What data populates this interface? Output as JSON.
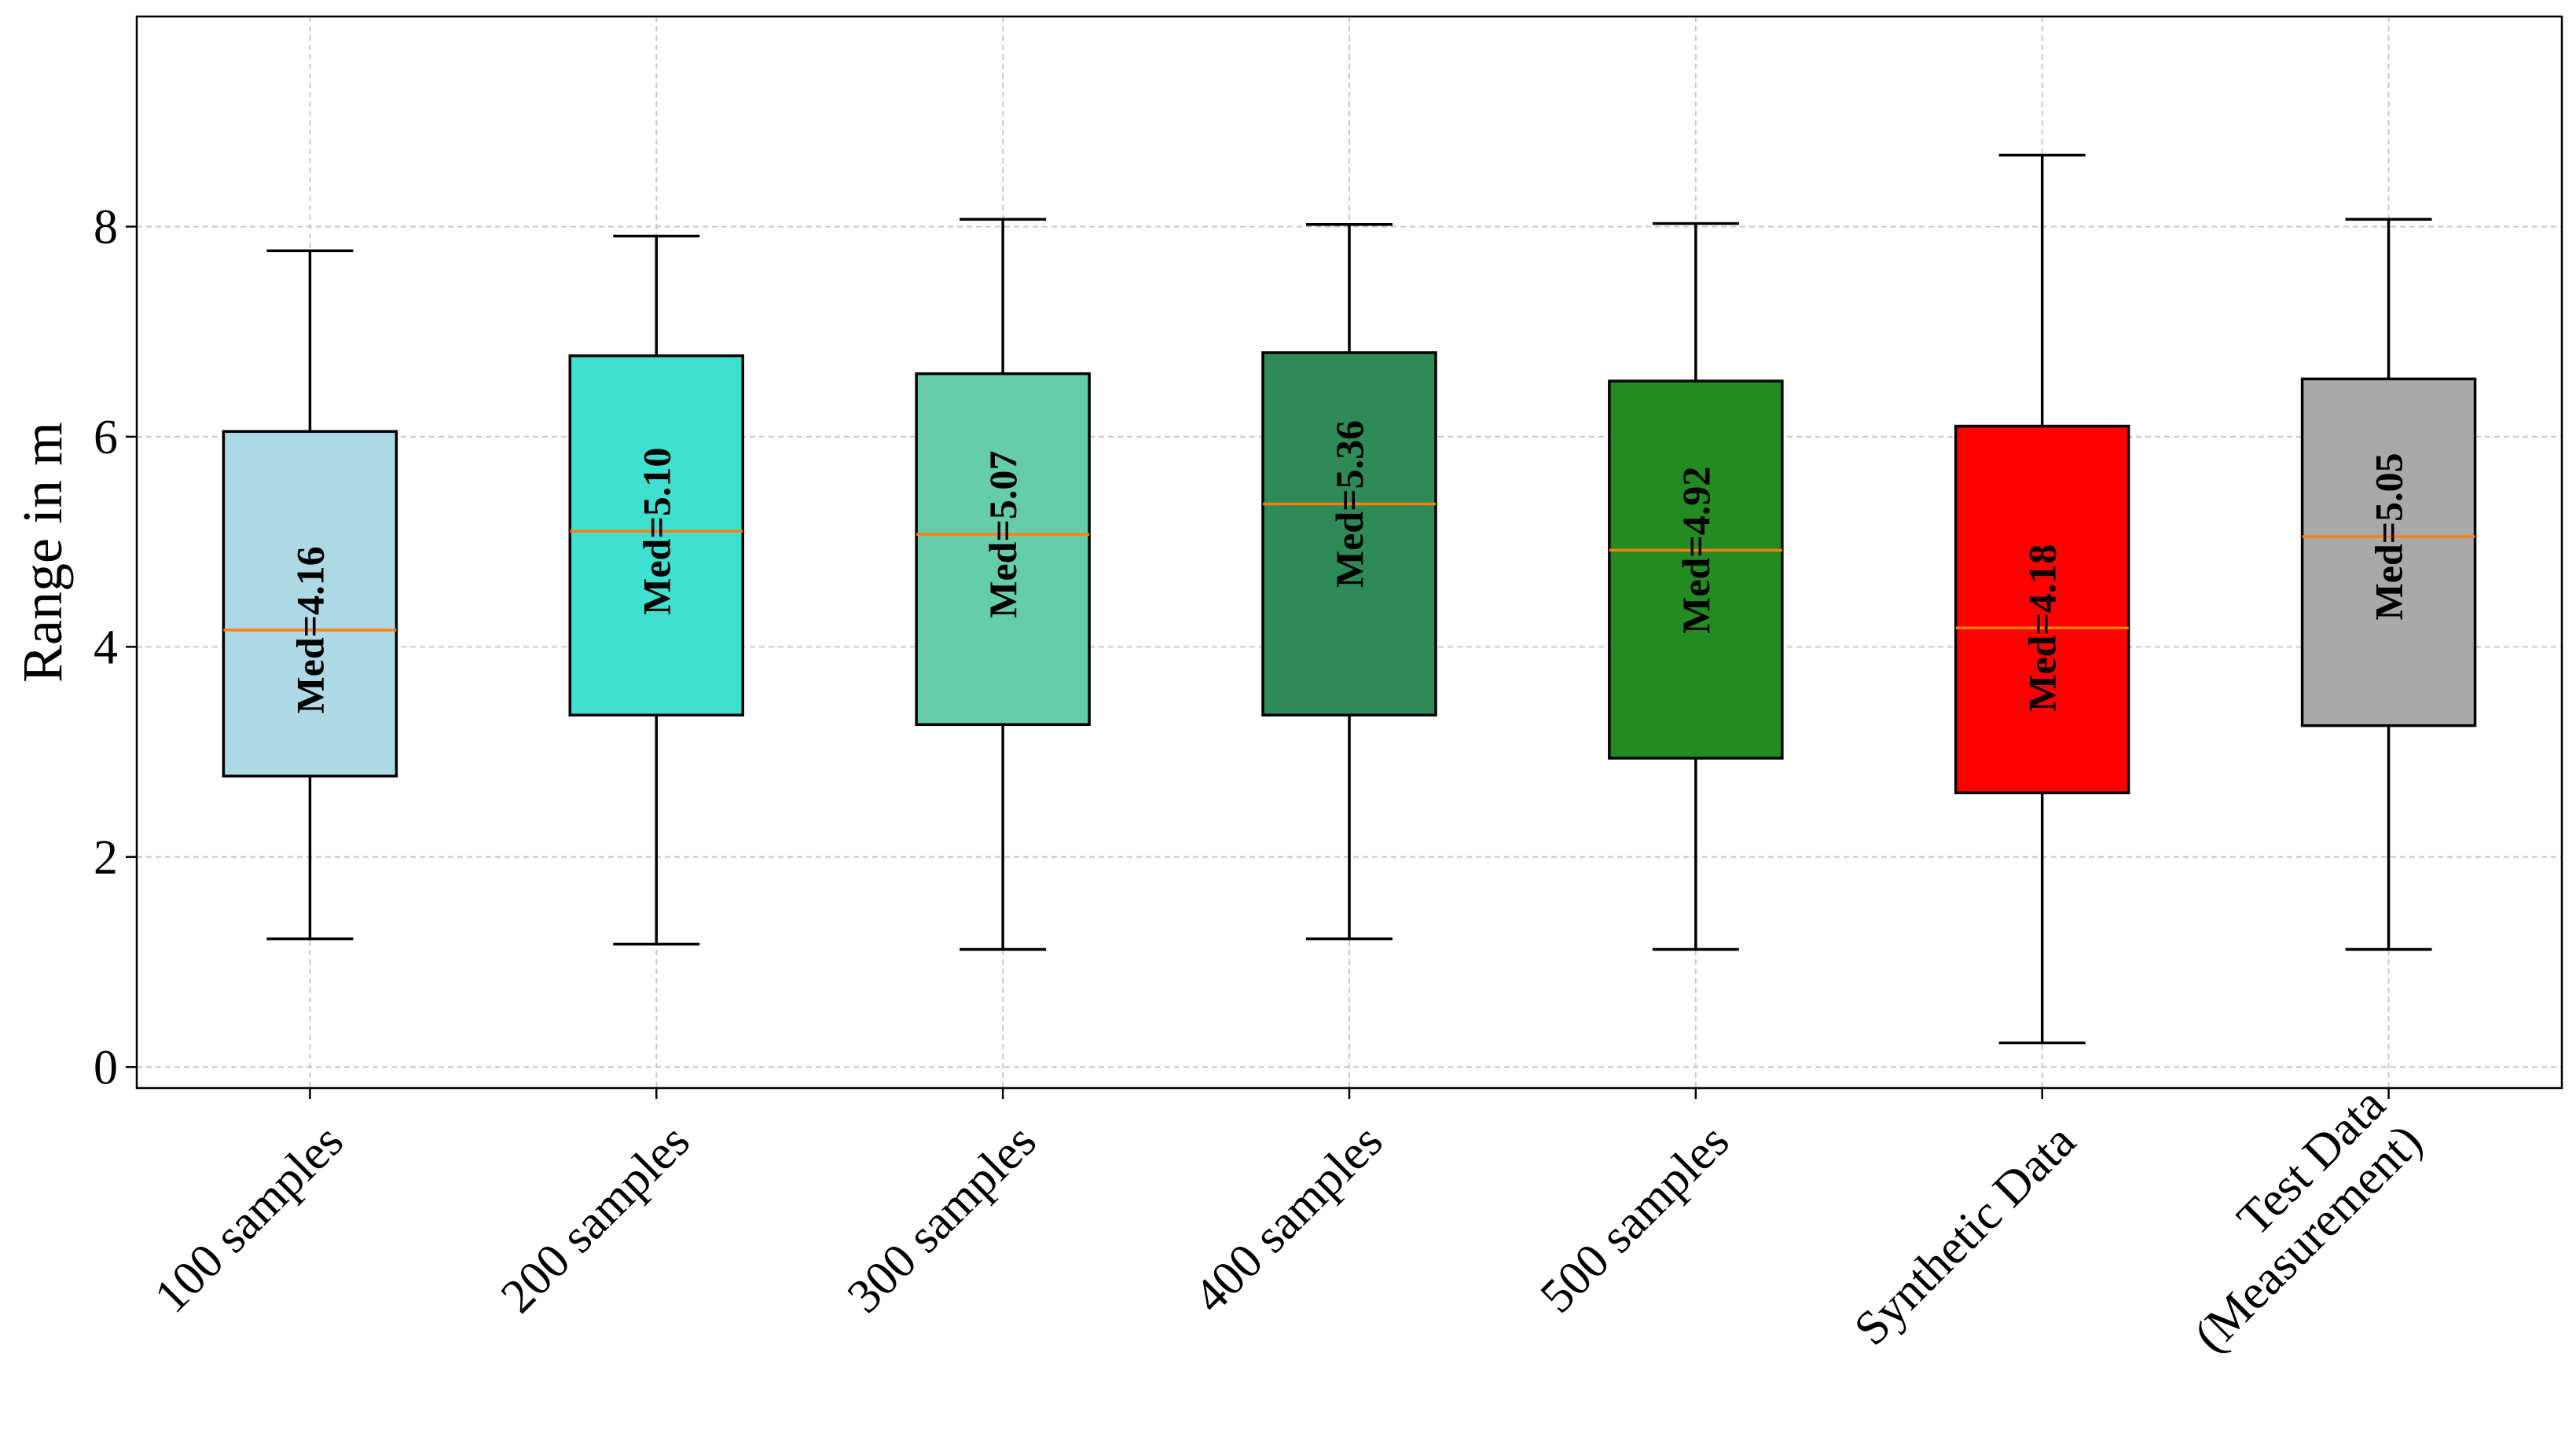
{
  "chart_data": {
    "type": "box",
    "title": "",
    "xlabel": "",
    "ylabel": "Range in m",
    "ylim": [
      -0.2,
      10
    ],
    "yticks": [
      0,
      2,
      4,
      6,
      8
    ],
    "grid": true,
    "median_color": "#ff7f0e",
    "boxes": [
      {
        "label_lines": [
          "100 samples"
        ],
        "whisker_low": 1.22,
        "q1": 2.77,
        "median": 4.16,
        "q3": 6.05,
        "whisker_high": 7.77,
        "color": "#add8e6",
        "median_label": "Med=4.16"
      },
      {
        "label_lines": [
          "200 samples"
        ],
        "whisker_low": 1.17,
        "q1": 3.35,
        "median": 5.1,
        "q3": 6.77,
        "whisker_high": 7.91,
        "color": "#40e0d0",
        "median_label": "Med=5.10"
      },
      {
        "label_lines": [
          "300 samples"
        ],
        "whisker_low": 1.12,
        "q1": 3.26,
        "median": 5.07,
        "q3": 6.6,
        "whisker_high": 8.07,
        "color": "#66cdaa",
        "median_label": "Med=5.07"
      },
      {
        "label_lines": [
          "400 samples"
        ],
        "whisker_low": 1.22,
        "q1": 3.35,
        "median": 5.36,
        "q3": 6.8,
        "whisker_high": 8.02,
        "color": "#2e8b57",
        "median_label": "Med=5.36"
      },
      {
        "label_lines": [
          "500 samples"
        ],
        "whisker_low": 1.12,
        "q1": 2.94,
        "median": 4.92,
        "q3": 6.53,
        "whisker_high": 8.03,
        "color": "#228b22",
        "median_label": "Med=4.92"
      },
      {
        "label_lines": [
          "Synthetic Data"
        ],
        "whisker_low": 0.23,
        "q1": 2.61,
        "median": 4.18,
        "q3": 6.1,
        "whisker_high": 8.68,
        "color": "#ff0000",
        "median_label": "Med=4.18"
      },
      {
        "label_lines": [
          "Test Data",
          "(Measurement)"
        ],
        "whisker_low": 1.12,
        "q1": 3.25,
        "median": 5.05,
        "q3": 6.55,
        "whisker_high": 8.07,
        "color": "#a9a9a9",
        "median_label": "Med=5.05"
      }
    ]
  }
}
